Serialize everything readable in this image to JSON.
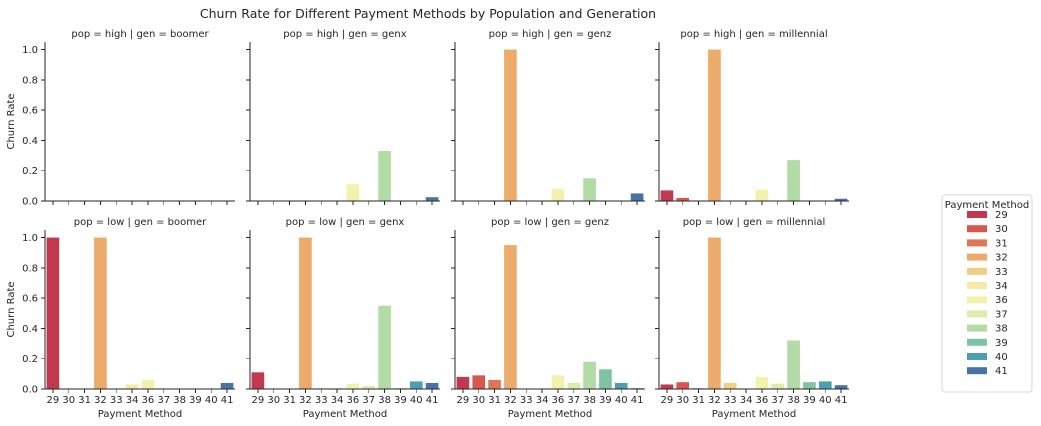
{
  "chart_data": {
    "type": "bar",
    "title": "Churn Rate for Different Payment Methods by Population and Generation",
    "xlabel": "Payment Method",
    "ylabel": "Churn Rate",
    "ylim": [
      0,
      1.05
    ],
    "yticks": [
      "0.0",
      "0.2",
      "0.4",
      "0.6",
      "0.8",
      "1.0"
    ],
    "ytick_values": [
      0,
      0.2,
      0.4,
      0.6,
      0.8,
      1.0
    ],
    "categories": [
      "29",
      "30",
      "31",
      "32",
      "33",
      "34",
      "36",
      "37",
      "38",
      "39",
      "40",
      "41"
    ],
    "colors": [
      "#c1384f",
      "#d8564b",
      "#e07655",
      "#edab6b",
      "#f2cd85",
      "#f7eaa8",
      "#f2f2ac",
      "#dbedaa",
      "#b3dba6",
      "#7fc3a3",
      "#4b9fb1",
      "#4673a8"
    ],
    "legend": {
      "title": "Payment Method",
      "placement": "center-right",
      "entries": [
        "29",
        "30",
        "31",
        "32",
        "33",
        "34",
        "36",
        "37",
        "38",
        "39",
        "40",
        "41"
      ]
    },
    "grid": false,
    "facets": [
      {
        "label": "pop = high | gen = boomer",
        "values": [
          0,
          0,
          0,
          0,
          0,
          0,
          0,
          0,
          0,
          0,
          0,
          0
        ]
      },
      {
        "label": "pop = high | gen = genx",
        "values": [
          0,
          0,
          0,
          0,
          0,
          0,
          0.11,
          0,
          0.33,
          0,
          0,
          0.025
        ]
      },
      {
        "label": "pop = high | gen = genz",
        "values": [
          0,
          0,
          0,
          1.0,
          0,
          0,
          0.08,
          0,
          0.15,
          0,
          0,
          0.05
        ]
      },
      {
        "label": "pop = high | gen = millennial",
        "values": [
          0.07,
          0.02,
          0,
          1.0,
          0,
          0,
          0.075,
          0,
          0.27,
          0,
          0,
          0.015
        ]
      },
      {
        "label": "pop = low | gen = boomer",
        "values": [
          1.0,
          0,
          0,
          1.0,
          0,
          0.03,
          0.06,
          0,
          0,
          0,
          0,
          0.04
        ]
      },
      {
        "label": "pop = low | gen = genx",
        "values": [
          0.11,
          0,
          0,
          1.0,
          0.005,
          0.005,
          0.035,
          0.02,
          0.55,
          0.005,
          0.05,
          0.04
        ]
      },
      {
        "label": "pop = low | gen = genz",
        "values": [
          0.08,
          0.09,
          0.06,
          0.95,
          0,
          0,
          0.09,
          0.04,
          0.18,
          0.13,
          0.04,
          0.005
        ]
      },
      {
        "label": "pop = low | gen = millennial",
        "values": [
          0.03,
          0.045,
          0.005,
          1.0,
          0.04,
          0,
          0.08,
          0.035,
          0.32,
          0.045,
          0.05,
          0.025
        ]
      }
    ]
  }
}
